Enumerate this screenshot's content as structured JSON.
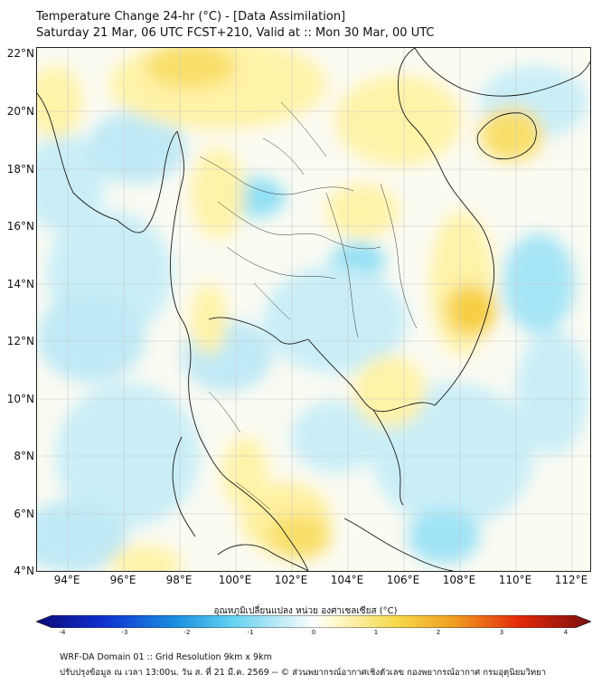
{
  "header": {
    "title_line1": "Temperature Change 24-hr (°C) - [Data Assimilation]",
    "title_line2": "Saturday 21 Mar, 06 UTC FCST+210, Valid at :: Mon 30 Mar, 00 UTC"
  },
  "map": {
    "latitude_labels": [
      "22°N",
      "20°N",
      "18°N",
      "16°N",
      "14°N",
      "12°N",
      "10°N",
      "8°N",
      "6°N",
      "4°N"
    ],
    "longitude_labels": [
      "94°E",
      "96°E",
      "98°E",
      "100°E",
      "102°E",
      "104°E",
      "106°E",
      "108°E",
      "110°E",
      "112°E"
    ],
    "colors": {
      "cool_strong": "#5fd0f0",
      "cool_light": "#c9eef8",
      "neutral": "#fbfbf2",
      "warm_light": "#fff3a8",
      "warm_strong": "#f7cf45",
      "coast": "#1a1a1a",
      "grid": "#c8c8c8"
    }
  },
  "colorbar": {
    "title": "อุณหภูมิเปลี่ยนแปลง หน่วย องศาเซลเซียส (°C)",
    "tick_labels": [
      "-4",
      "-3",
      "-2",
      "-1",
      "0",
      "1",
      "2",
      "3",
      "4"
    ]
  },
  "footer": {
    "line1": "WRF-DA Domain 01 :: Grid Resolution 9km x 9km",
    "line2": "ปรับปรุงข้อมูล ณ เวลา 13:00น. วัน ส. ที่ 21 มี.ค. 2569 -- © ส่วนพยากรณ์อากาศเชิงตัวเลข กองพยากรณ์อากาศ กรมอุตุนิยมวิทยา"
  }
}
